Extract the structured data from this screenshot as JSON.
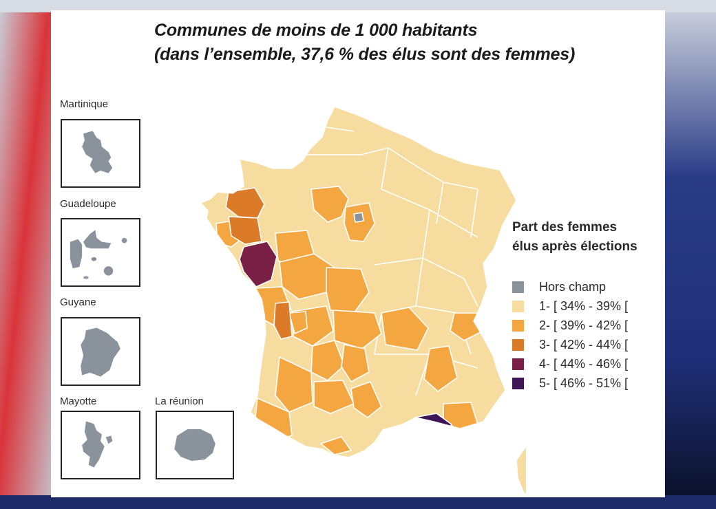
{
  "title": {
    "line1": "Communes de moins de 1 000 habitants",
    "line2": "(dans l’ensemble, 37,6 % des élus sont des femmes)"
  },
  "insets": {
    "martinique": "Martinique",
    "guadeloupe": "Guadeloupe",
    "guyane": "Guyane",
    "mayotte": "Mayotte",
    "reunion": "La réunion"
  },
  "legend": {
    "title_line1": "Part des femmes",
    "title_line2": "élus après élections",
    "items": [
      {
        "label": "Hors champ",
        "color": "#8a929c"
      },
      {
        "label": "1- [ 34% - 39% [",
        "color": "#f7dca0"
      },
      {
        "label": "2- [ 39% - 42% [",
        "color": "#f4a640"
      },
      {
        "label": "3- [ 42% - 44% [",
        "color": "#db7a27"
      },
      {
        "label": "4- [ 44% - 46% [",
        "color": "#7a1f45"
      },
      {
        "label": "5- [ 46% - 51% [",
        "color": "#3e1656"
      }
    ]
  },
  "colors": {
    "outremer": "#8a929c",
    "border": "#ffffff"
  }
}
